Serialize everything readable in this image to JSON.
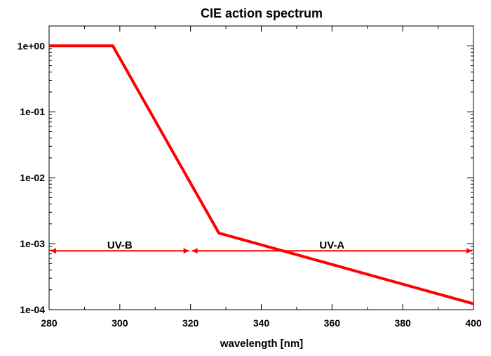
{
  "chart_data": {
    "type": "line",
    "title": "CIE action spectrum",
    "xlabel": "wavelength [nm]",
    "ylabel": "",
    "xlim": [
      280,
      400
    ],
    "ylim": [
      0.0001,
      2
    ],
    "y_scale": "log",
    "grid": false,
    "x_ticks": [
      "280",
      "300",
      "320",
      "340",
      "360",
      "380",
      "400"
    ],
    "y_ticks": [
      "1e+00",
      "1e-01",
      "1e-02",
      "1e-03",
      "1e-04"
    ],
    "series": [
      {
        "color": "#ff0000",
        "x": [
          280,
          298,
          328,
          400
        ],
        "y": [
          1.0,
          1.0,
          0.00145,
          0.000123
        ]
      }
    ],
    "annotations": [
      {
        "label": "UV-B",
        "x_start": 280,
        "x_end": 320,
        "y": 0.00078,
        "color": "#ff0000"
      },
      {
        "label": "UV-A",
        "x_start": 320,
        "x_end": 400,
        "y": 0.00078,
        "color": "#ff0000"
      }
    ]
  }
}
